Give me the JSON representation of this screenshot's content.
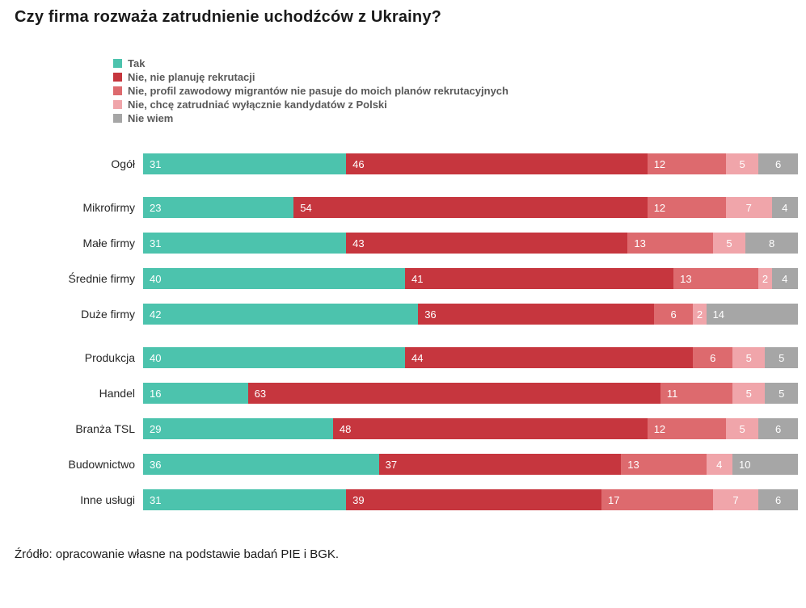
{
  "title": "Czy firma rozważa zatrudnienie uchodźców z Ukrainy?",
  "source": "Źródło: opracowanie własne na podstawie badań PIE i BGK.",
  "chart_data": {
    "type": "bar",
    "orientation": "horizontal",
    "stacked": true,
    "unit": "percent",
    "xlim": [
      0,
      100
    ],
    "grid": false,
    "legend_position": "top-left",
    "series": [
      {
        "name": "Tak",
        "color": "#4cc3ad"
      },
      {
        "name": "Nie, nie planuję rekrutacji",
        "color": "#c6363e"
      },
      {
        "name": "Nie, profil zawodowy migrantów nie pasuje do moich planów rekrutacyjnych",
        "color": "#dd6a6e"
      },
      {
        "name": "Nie, chcę zatrudniać wyłącznie kandydatów z Polski",
        "color": "#f0a5aa"
      },
      {
        "name": "Nie wiem",
        "color": "#a6a6a6"
      }
    ],
    "categories": [
      "Ogół",
      "Mikrofirmy",
      "Małe firmy",
      "Średnie firmy",
      "Duże firmy",
      "Produkcja",
      "Handel",
      "Branża TSL",
      "Budownictwo",
      "Inne usługi"
    ],
    "rows": [
      {
        "label": "Ogół",
        "group": 0,
        "values": [
          31,
          46,
          12,
          5,
          6
        ]
      },
      {
        "label": "Mikrofirmy",
        "group": 1,
        "values": [
          23,
          54,
          12,
          7,
          4
        ]
      },
      {
        "label": "Małe firmy",
        "group": 1,
        "values": [
          31,
          43,
          13,
          5,
          8
        ]
      },
      {
        "label": "Średnie firmy",
        "group": 1,
        "values": [
          40,
          41,
          13,
          2,
          4
        ]
      },
      {
        "label": "Duże firmy",
        "group": 1,
        "values": [
          42,
          36,
          6,
          2,
          14
        ]
      },
      {
        "label": "Produkcja",
        "group": 2,
        "values": [
          40,
          44,
          6,
          5,
          5
        ]
      },
      {
        "label": "Handel",
        "group": 2,
        "values": [
          16,
          63,
          11,
          5,
          5
        ]
      },
      {
        "label": "Branża TSL",
        "group": 2,
        "values": [
          29,
          48,
          12,
          5,
          6
        ]
      },
      {
        "label": "Budownictwo",
        "group": 2,
        "values": [
          36,
          37,
          13,
          4,
          10
        ]
      },
      {
        "label": "Inne usługi",
        "group": 2,
        "values": [
          31,
          39,
          17,
          7,
          6
        ]
      }
    ]
  }
}
